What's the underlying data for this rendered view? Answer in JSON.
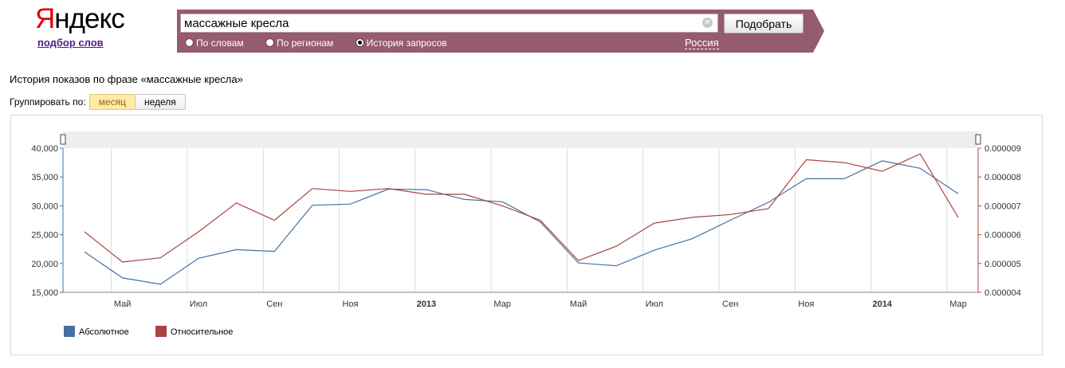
{
  "logo": {
    "first_letter": "Я",
    "rest": "ндекс",
    "subtitle": "подбор слов"
  },
  "search": {
    "value": "массажные кресла",
    "clear_icon": "✕",
    "submit_label": "Подобрать",
    "modes": [
      {
        "label": "По словам",
        "checked": false
      },
      {
        "label": "По регионам",
        "checked": false
      },
      {
        "label": "История запросов",
        "checked": true
      }
    ],
    "region": "Россия"
  },
  "heading": "История показов по фразе «массажные кресла»",
  "grouping": {
    "label": "Группировать по:",
    "options": [
      "месяц",
      "неделя"
    ],
    "active": "месяц"
  },
  "colors": {
    "panel": "#965a71",
    "absolute": "#4670a3",
    "relative": "#a94442"
  },
  "chart_data": {
    "type": "line",
    "x": [
      "2012-04",
      "2012-05",
      "2012-06",
      "2012-07",
      "2012-08",
      "2012-09",
      "2012-10",
      "2012-11",
      "2012-12",
      "2013-01",
      "2013-02",
      "2013-03",
      "2013-04",
      "2013-05",
      "2013-06",
      "2013-07",
      "2013-08",
      "2013-09",
      "2013-10",
      "2013-11",
      "2013-12",
      "2014-01",
      "2014-02",
      "2014-03"
    ],
    "x_tick_labels": [
      {
        "date": "2012-05",
        "label": "Май",
        "bold": false
      },
      {
        "date": "2012-07",
        "label": "Июл",
        "bold": false
      },
      {
        "date": "2012-09",
        "label": "Сен",
        "bold": false
      },
      {
        "date": "2012-11",
        "label": "Ноя",
        "bold": false
      },
      {
        "date": "2013-01",
        "label": "2013",
        "bold": true
      },
      {
        "date": "2013-03",
        "label": "Мар",
        "bold": false
      },
      {
        "date": "2013-05",
        "label": "Май",
        "bold": false
      },
      {
        "date": "2013-07",
        "label": "Июл",
        "bold": false
      },
      {
        "date": "2013-09",
        "label": "Сен",
        "bold": false
      },
      {
        "date": "2013-11",
        "label": "Ноя",
        "bold": false
      },
      {
        "date": "2014-01",
        "label": "2014",
        "bold": true
      },
      {
        "date": "2014-03",
        "label": "Мар",
        "bold": false
      }
    ],
    "series": [
      {
        "name": "Абсолютное",
        "axis": "left",
        "values": [
          22000,
          17500,
          16400,
          20900,
          22400,
          22100,
          30100,
          30300,
          32900,
          32800,
          31100,
          30700,
          27200,
          20100,
          19600,
          22300,
          24300,
          27500,
          30600,
          34700,
          34700,
          37800,
          36500,
          32100
        ]
      },
      {
        "name": "Относительное",
        "axis": "right",
        "values": [
          6.1e-06,
          5.05e-06,
          5.2e-06,
          6.1e-06,
          7.1e-06,
          6.5e-06,
          7.6e-06,
          7.5e-06,
          7.6e-06,
          7.4e-06,
          7.4e-06,
          7e-06,
          6.5e-06,
          5.1e-06,
          5.6e-06,
          6.4e-06,
          6.6e-06,
          6.7e-06,
          6.9e-06,
          8.6e-06,
          8.5e-06,
          8.2e-06,
          8.8e-06,
          6.6e-06
        ]
      }
    ],
    "y_left": {
      "min": 15000,
      "max": 40000,
      "ticks": [
        "15,000",
        "20,000",
        "25,000",
        "30,000",
        "35,000",
        "40,000"
      ]
    },
    "y_right": {
      "min": 4e-06,
      "max": 9e-06,
      "ticks": [
        "0.000004",
        "0.000005",
        "0.000006",
        "0.000007",
        "0.000008",
        "0.000009"
      ]
    },
    "grid": "vertical",
    "legend": "bottom-left"
  }
}
